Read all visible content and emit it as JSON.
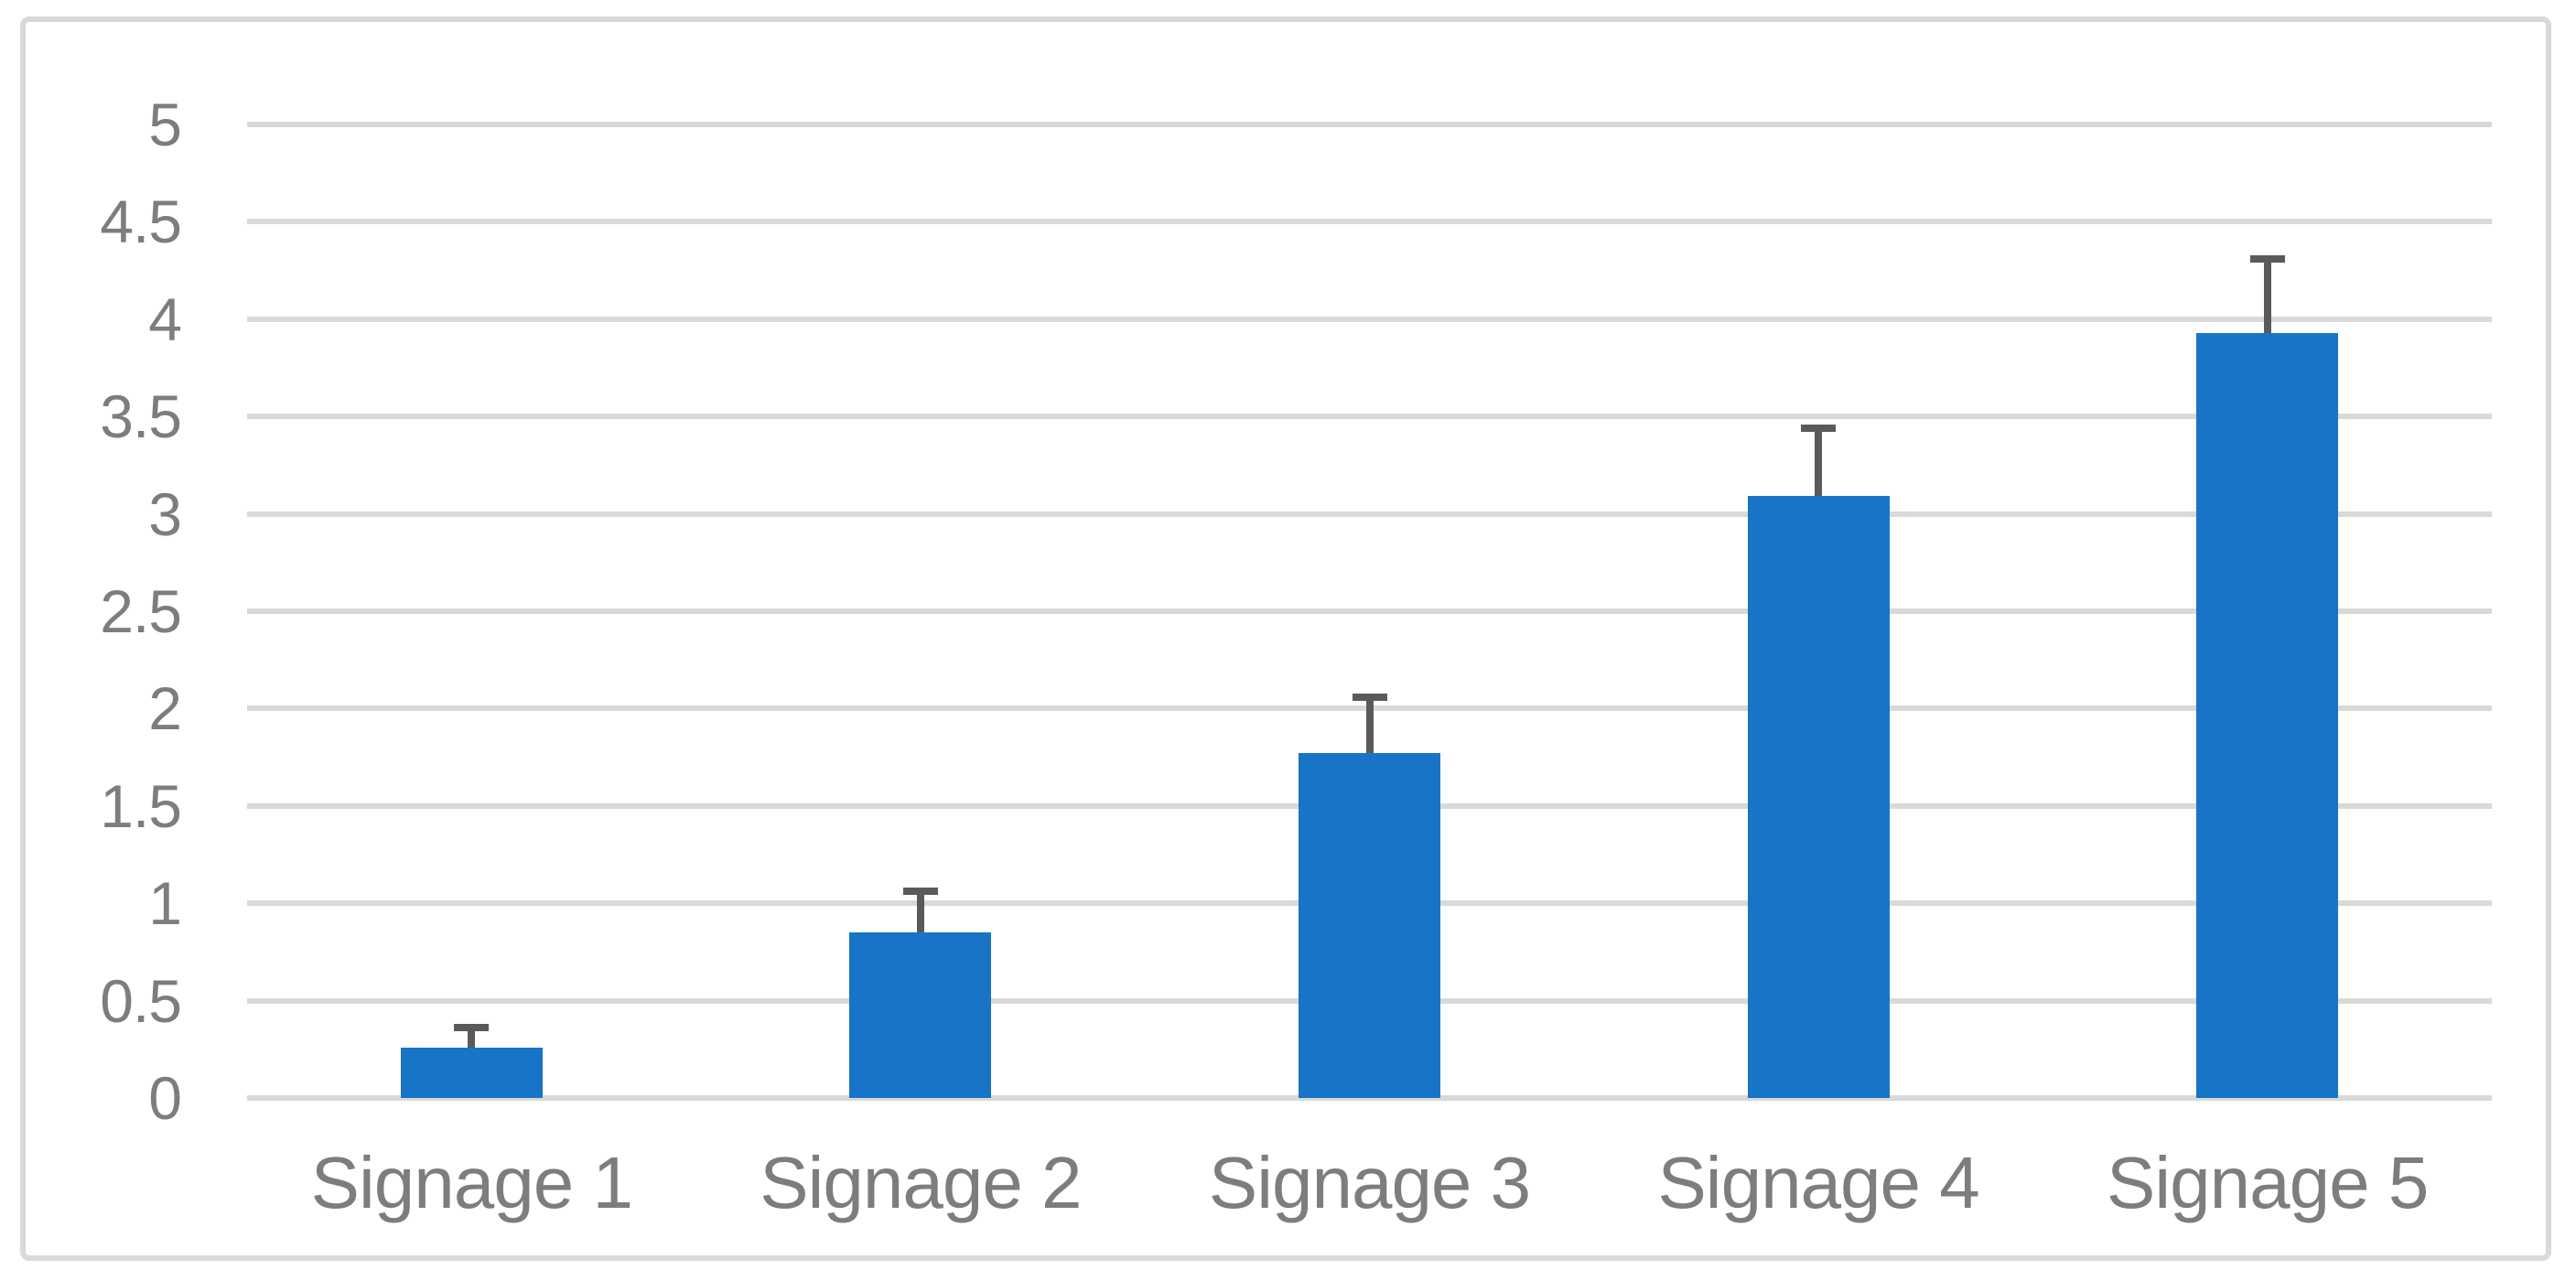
{
  "chart_data": {
    "type": "bar",
    "title": "",
    "xlabel": "",
    "ylabel": "",
    "categories": [
      "Signage 1",
      "Signage 2",
      "Signage 3",
      "Signage 4",
      "Signage 5"
    ],
    "series": [
      {
        "name": "",
        "values": [
          0.26,
          0.85,
          1.77,
          3.09,
          3.93
        ],
        "error_plus": [
          0.1,
          0.21,
          0.29,
          0.35,
          0.38
        ]
      }
    ],
    "ylim": [
      0,
      5
    ],
    "ytick_step": 0.5,
    "ytick_labels": [
      "0",
      "0.5",
      "1",
      "1.5",
      "2",
      "2.5",
      "3",
      "3.5",
      "4",
      "4.5",
      "5"
    ],
    "grid": true,
    "legend": false,
    "error_bars": "plus-only",
    "colors": {
      "bar": "#1774C7",
      "error_bar": "#5A5A5A",
      "gridline": "#D9D9D9",
      "chart_border": "#D9D9D9",
      "tick_label": "#7D7D7D",
      "background": "#FFFFFF"
    }
  }
}
